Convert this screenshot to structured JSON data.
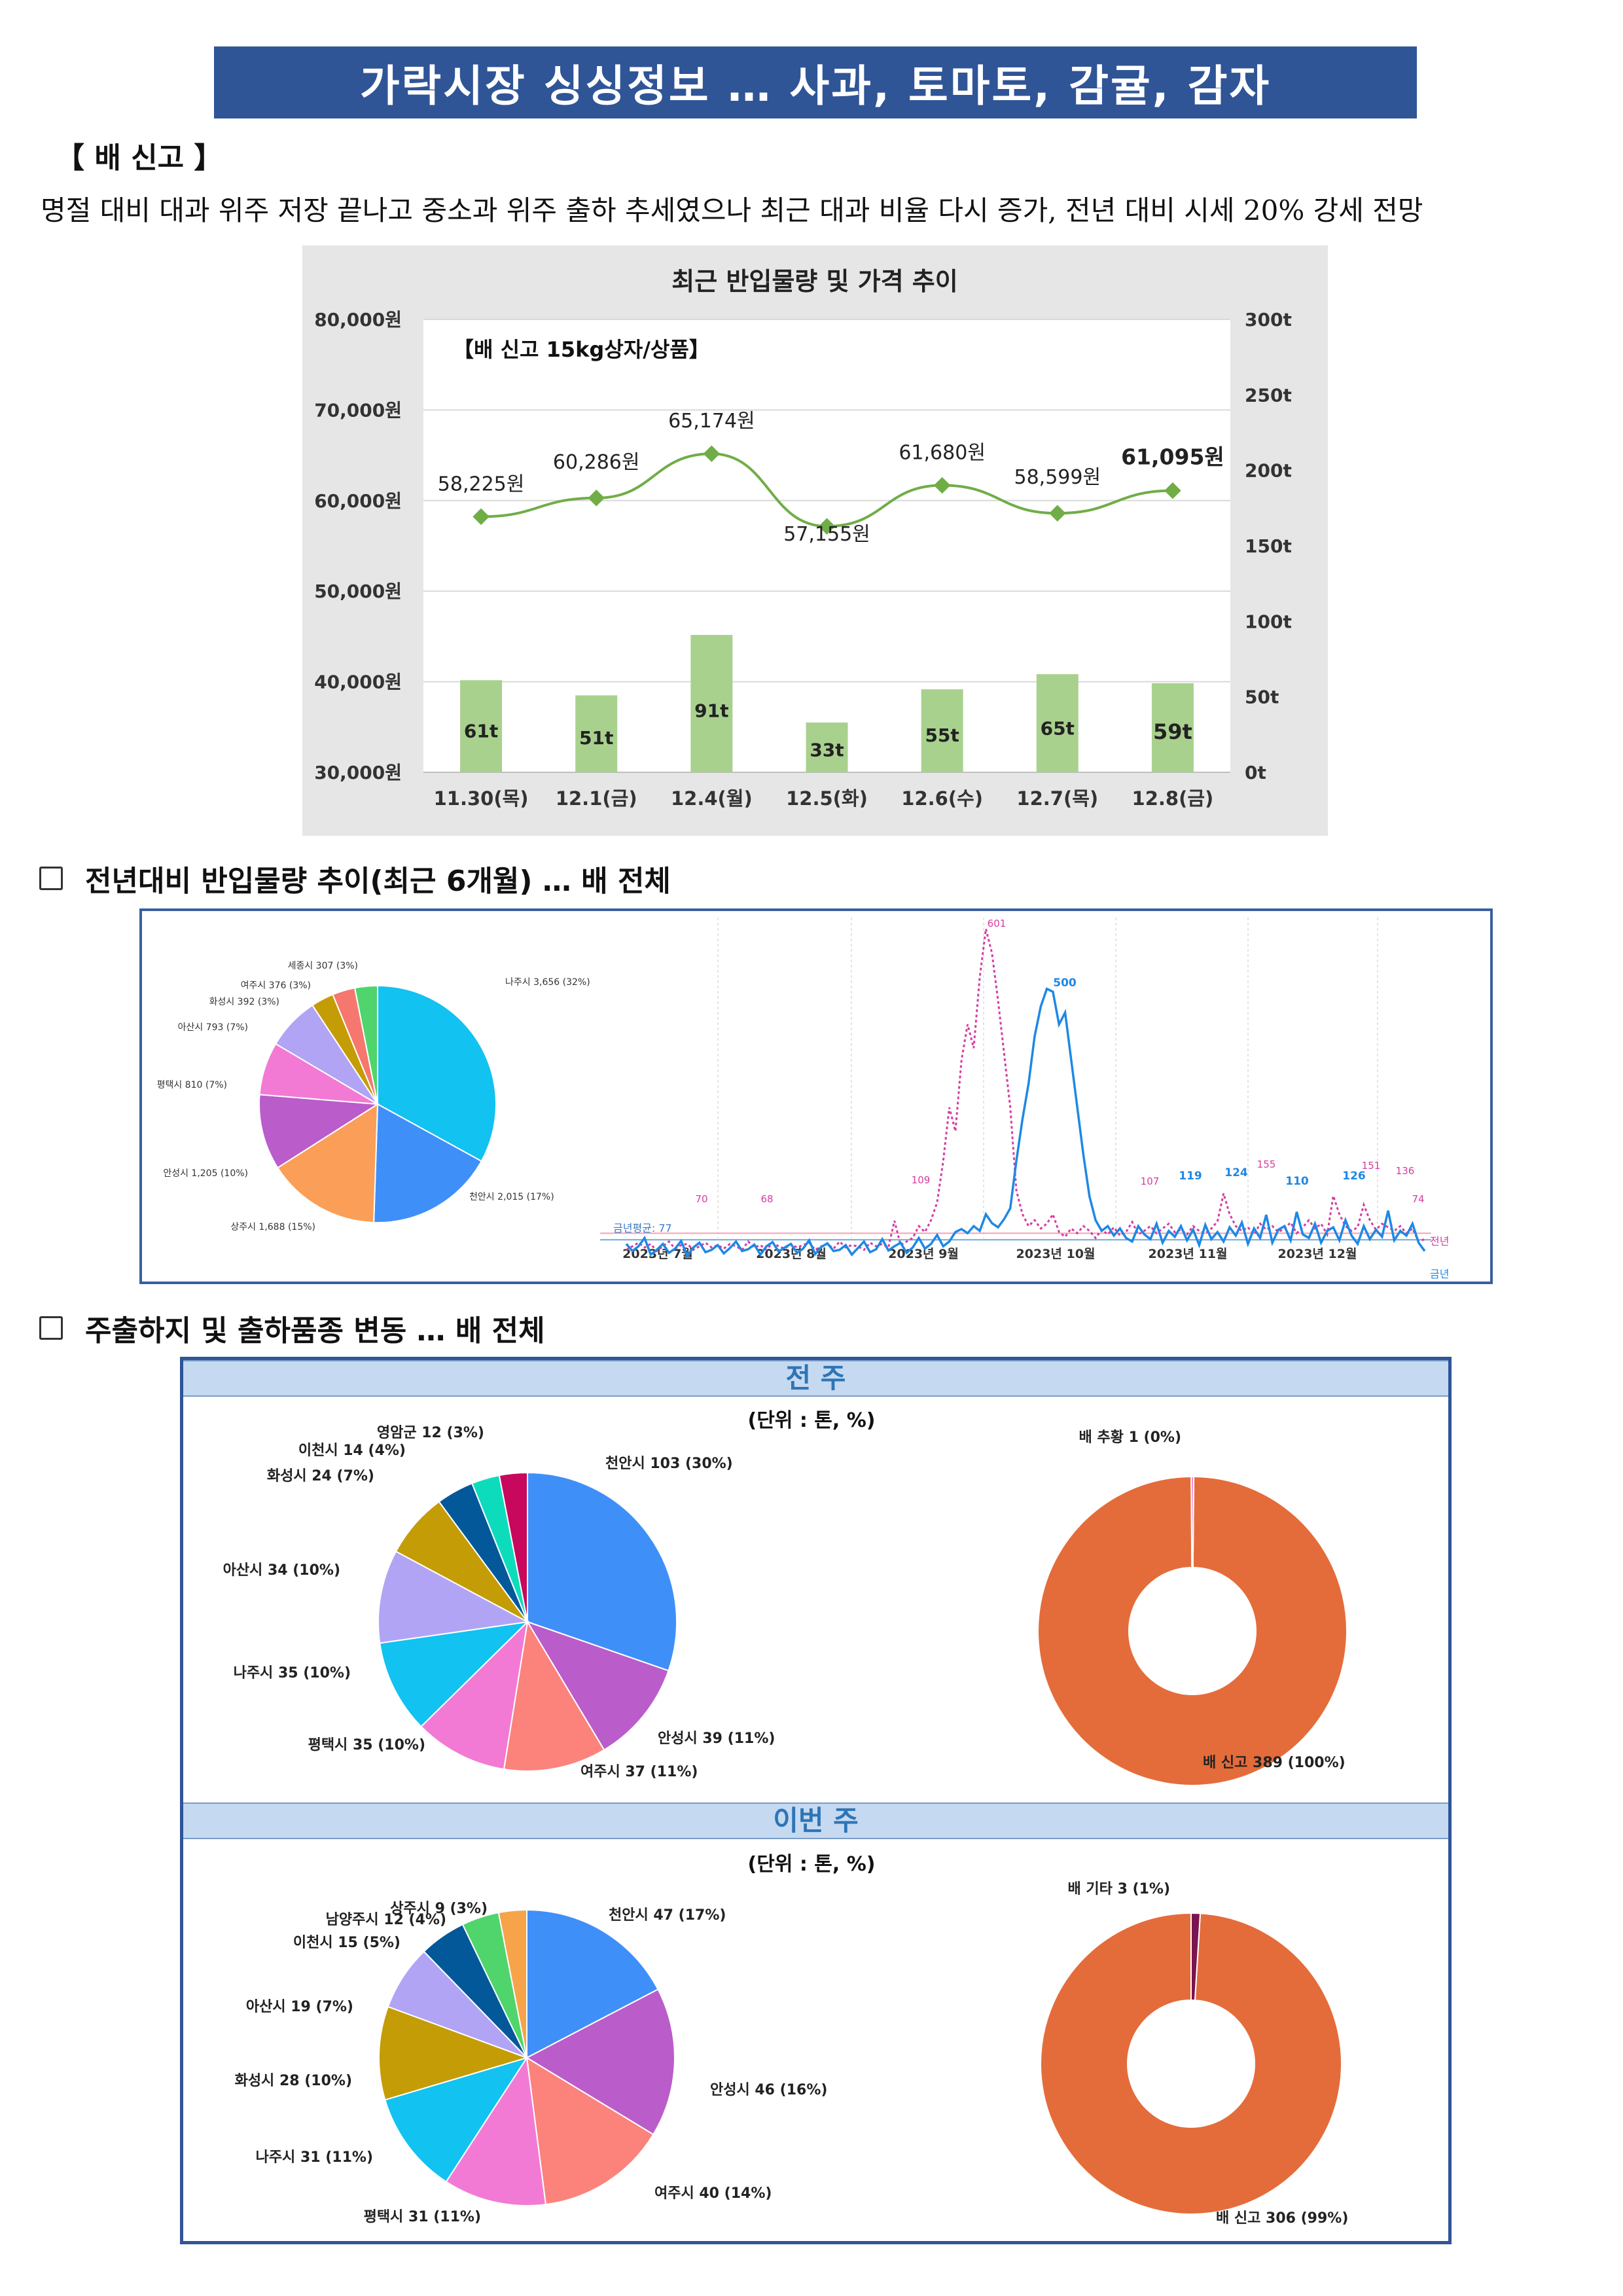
{
  "title": "가락시장 싱싱정보 … 사과, 토마토, 감귤, 감자",
  "section_tag": "【 배 신고 】",
  "summary": "명절 대비 대과 위주 저장 끝나고 중소과 위주 출하 추세였으나 최근 대과 비율 다시 증가, 전년 대비 시세 20% 강세 전망",
  "heading_volume": "전년대비 반입물량 추이(최근 6개월) … 배 전체",
  "heading_origin": "주출하지 및 출하품종 변동 … 배 전체",
  "colors": {
    "banner": "#2f5597",
    "bar": "#a9d18e",
    "price_line": "#70ad47",
    "this_year": "#1e88e5",
    "last_year": "#d63ca0",
    "donut": "#e46c3a",
    "pie": [
      "#3f8ff8",
      "#bb5ccb",
      "#fb837c",
      "#f27ad4",
      "#12c2f0",
      "#b1a4f5",
      "#c49c06",
      "#03589a",
      "#0ddcbc",
      "#c7085c",
      "#4fd56b",
      "#f7a34a"
    ]
  },
  "chart_data": [
    {
      "type": "bar",
      "title": "최근 반입물량 및 가격 추이",
      "inner_label": "【배 신고 15kg상자/상품】",
      "categories": [
        "11.30(목)",
        "12.1(금)",
        "12.4(월)",
        "12.5(화)",
        "12.6(수)",
        "12.7(목)",
        "12.8(금)"
      ],
      "series": [
        {
          "type": "bar",
          "axis": "right",
          "values": [
            61,
            51,
            91,
            33,
            55,
            65,
            59
          ],
          "labels": [
            "61t",
            "51t",
            "91t",
            "33t",
            "55t",
            "65t",
            "59t"
          ]
        },
        {
          "type": "line",
          "axis": "left",
          "values": [
            58225,
            60286,
            65174,
            57155,
            61680,
            58599,
            61095
          ],
          "labels": [
            "58,225원",
            "60,286원",
            "65,174원",
            "57,155원",
            "61,680원",
            "58,599원",
            "61,095원"
          ]
        }
      ],
      "left_axis": {
        "range": [
          30000,
          80000
        ],
        "ticks": [
          "30,000원",
          "40,000원",
          "50,000원",
          "60,000원",
          "70,000원",
          "80,000원"
        ]
      },
      "right_axis": {
        "range": [
          0,
          300
        ],
        "ticks": [
          "0t",
          "50t",
          "100t",
          "150t",
          "200t",
          "250t",
          "300t"
        ]
      }
    },
    {
      "type": "pie",
      "slices": [
        {
          "label": "나주시 3,656 (32%)",
          "value": 32
        },
        {
          "label": "천안시 2,015 (17%)",
          "value": 17
        },
        {
          "label": "상주시 1,688 (15%)",
          "value": 15
        },
        {
          "label": "안성시 1,205 (10%)",
          "value": 10
        },
        {
          "label": "평택시 810 (7%)",
          "value": 7
        },
        {
          "label": "아산시 793 (7%)",
          "value": 7
        },
        {
          "label": "화성시 392 (3%)",
          "value": 3
        },
        {
          "label": "여주시 376 (3%)",
          "value": 3
        },
        {
          "label": "세종시 307 (3%)",
          "value": 3
        }
      ]
    },
    {
      "type": "line",
      "x_ticks": [
        "2023년 7월",
        "2023년 8월",
        "2023년 9월",
        "2023년 10월",
        "2023년 11월",
        "2023년 12월"
      ],
      "series": [
        {
          "name": "금년",
          "values": [
            70,
            58,
            66,
            80,
            52,
            60,
            70,
            55,
            62,
            75,
            50,
            64,
            72,
            56,
            60,
            68,
            54,
            63,
            74,
            58,
            61,
            69,
            52,
            66,
            73,
            57,
            64,
            70,
            55,
            62,
            76,
            53,
            65,
            71,
            58,
            60,
            68,
            52,
            63,
            74,
            56,
            61,
            78,
            59,
            66,
            72,
            55,
            64,
            80,
            62,
            70,
            85,
            66,
            74,
            90,
            95,
            88,
            100,
            92,
            120,
            105,
            98,
            112,
            130,
            210,
            280,
            340,
            420,
            470,
            500,
            495,
            440,
            460,
            380,
            300,
            220,
            150,
            110,
            92,
            100,
            84,
            96,
            80,
            74,
            100,
            86,
            78,
            104,
            72,
            92,
            82,
            100,
            76,
            94,
            68,
            102,
            78,
            90,
            74,
            98,
            84,
            106,
            70,
            96,
            80,
            119,
            72,
            94,
            100,
            76,
            124,
            86,
            80,
            104,
            72,
            92,
            98,
            76,
            110,
            84,
            70,
            100,
            78,
            94,
            82,
            126,
            76,
            92,
            84,
            104,
            72,
            58
          ]
        },
        {
          "name": "전년",
          "values": [
            60,
            66,
            72,
            64,
            70,
            58,
            66,
            74,
            62,
            68,
            70,
            60,
            66,
            72,
            64,
            68,
            62,
            70,
            66,
            60,
            74,
            64,
            68,
            60,
            72,
            66,
            62,
            70,
            64,
            68,
            72,
            60,
            66,
            70,
            62,
            74,
            64,
            68,
            66,
            60,
            72,
            66,
            70,
            64,
            109,
            68,
            74,
            80,
            100,
            90,
            110,
            140,
            210,
            300,
            260,
            380,
            440,
            400,
            520,
            601,
            560,
            480,
            390,
            300,
            160,
            120,
            100,
            110,
            96,
            104,
            120,
            90,
            82,
            96,
            88,
            100,
            92,
            80,
            94,
            86,
            98,
            84,
            90,
            107,
            86,
            92,
            100,
            88,
            96,
            104,
            90,
            94,
            86,
            100,
            92,
            88,
            96,
            108,
            155,
            120,
            100,
            92,
            98,
            86,
            104,
            94,
            100,
            90,
            96,
            106,
            88,
            98,
            110,
            96,
            104,
            86,
            151,
            120,
            100,
            92,
            98,
            136,
            110,
            94,
            104,
            98,
            92,
            100,
            88,
            96,
            74,
            78
          ]
        }
      ],
      "reference_line": {
        "label": "금년평균: 77",
        "value": 77
      },
      "peak_labels": {
        "this_year": [
          "500",
          "119",
          "124",
          "110",
          "126"
        ],
        "last_year": [
          "601",
          "109",
          "107",
          "155",
          "151",
          "136",
          "74",
          "70",
          "68"
        ]
      }
    },
    {
      "type": "pie",
      "title": "전 주",
      "unit": "(단위 : 톤, %)",
      "slices": [
        {
          "label": "천안시 103 (30%)",
          "value": 30
        },
        {
          "label": "안성시 39 (11%)",
          "value": 11
        },
        {
          "label": "여주시 37 (11%)",
          "value": 11
        },
        {
          "label": "평택시 35 (10%)",
          "value": 10
        },
        {
          "label": "나주시 35 (10%)",
          "value": 10
        },
        {
          "label": "아산시 34 (10%)",
          "value": 10
        },
        {
          "label": "화성시 24 (7%)",
          "value": 7
        },
        {
          "label": "이천시 14 (4%)",
          "value": 4
        },
        {
          "label": "영암군 12 (3%)",
          "value": 3
        },
        {
          "label": "",
          "value": 3
        }
      ]
    },
    {
      "type": "pie",
      "title": "전 주",
      "slices": [
        {
          "label": "배 신고 389 (100%)",
          "value": 389
        },
        {
          "label": "배 추황 1 (0%)",
          "value": 1
        }
      ]
    },
    {
      "type": "pie",
      "title": "이번 주",
      "unit": "(단위 : 톤, %)",
      "slices": [
        {
          "label": "천안시 47 (17%)",
          "value": 17
        },
        {
          "label": "안성시 46 (16%)",
          "value": 16
        },
        {
          "label": "여주시 40 (14%)",
          "value": 14
        },
        {
          "label": "평택시 31 (11%)",
          "value": 11
        },
        {
          "label": "나주시 31 (11%)",
          "value": 11
        },
        {
          "label": "화성시 28 (10%)",
          "value": 10
        },
        {
          "label": "아산시 19 (7%)",
          "value": 7
        },
        {
          "label": "이천시 15 (5%)",
          "value": 5
        },
        {
          "label": "남양주시 12 (4%)",
          "value": 4
        },
        {
          "label": "상주시 9 (3%)",
          "value": 3
        }
      ]
    },
    {
      "type": "pie",
      "title": "이번 주",
      "slices": [
        {
          "label": "배 신고 306 (99%)",
          "value": 306
        },
        {
          "label": "배 기타 3 (1%)",
          "value": 3
        }
      ]
    }
  ]
}
